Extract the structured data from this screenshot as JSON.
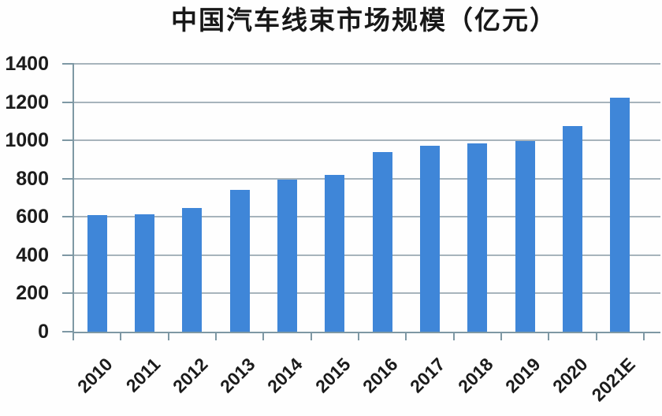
{
  "chart_data": {
    "type": "bar",
    "title": "中国汽车线束市场规模（亿元）",
    "categories": [
      "2010",
      "2011",
      "2012",
      "2013",
      "2014",
      "2015",
      "2016",
      "2017",
      "2018",
      "2019",
      "2020",
      "2021E"
    ],
    "values": [
      610,
      615,
      645,
      740,
      795,
      820,
      940,
      970,
      985,
      995,
      1075,
      1225
    ],
    "xlabel": "",
    "ylabel": "",
    "ylim": [
      0,
      1400
    ],
    "ytick_interval": 200,
    "yticks": [
      0,
      200,
      400,
      600,
      800,
      1000,
      1200,
      1400
    ],
    "grid": "horizontal",
    "legend": "none",
    "x_label_rotation_deg": -45,
    "colors": {
      "bar": "#3F86D8",
      "gridline": "#A7B4BC",
      "axis": "#7E98A4",
      "text": "#1B1B1B",
      "background": "#FEFEFE"
    }
  }
}
